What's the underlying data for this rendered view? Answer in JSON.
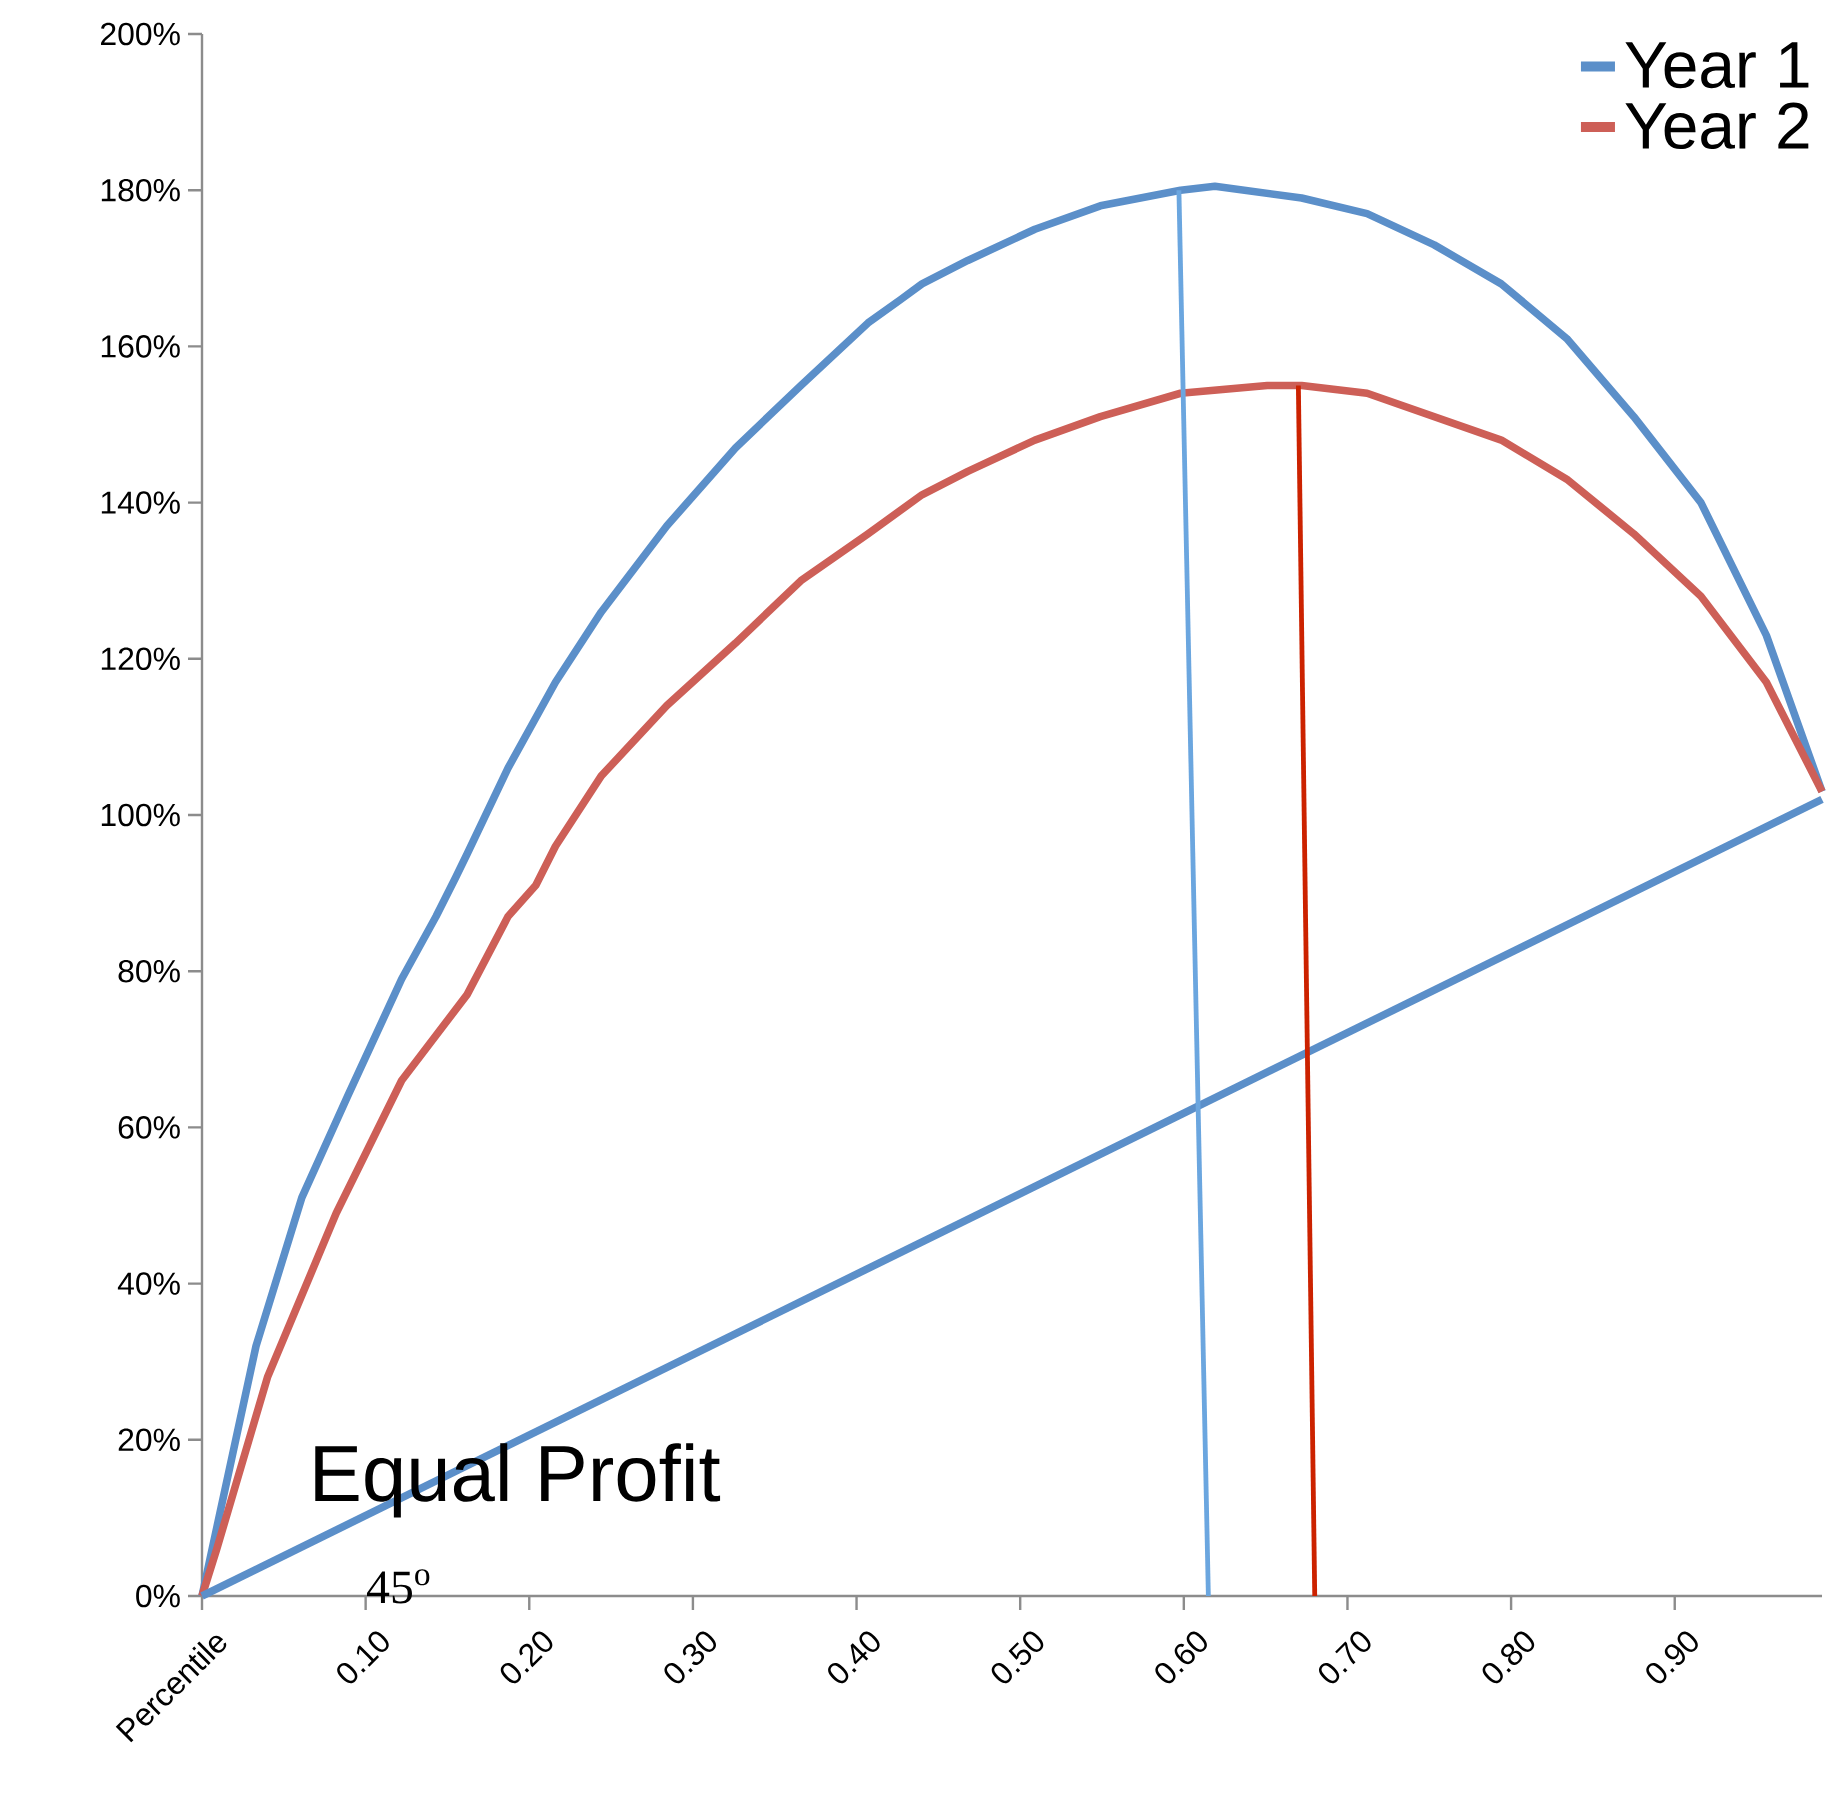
{
  "chart_data": {
    "type": "line",
    "annotations": [
      "Equal Profit",
      "45$^{o}$"
    ],
    "xlim": [
      0,
      0.99
    ],
    "xticks": [
      {
        "value": 0,
        "label": "Percentile"
      },
      {
        "value": 0.1,
        "label": "0.10"
      },
      {
        "value": 0.2,
        "label": "0.20"
      },
      {
        "value": 0.3,
        "label": "0.30"
      },
      {
        "value": 0.4,
        "label": "0.40"
      },
      {
        "value": 0.5,
        "label": "0.50"
      },
      {
        "value": 0.6,
        "label": "0.60"
      },
      {
        "value": 0.7,
        "label": "0.70"
      },
      {
        "value": 0.8,
        "label": "0.80"
      },
      {
        "value": 0.9,
        "label": "0.90"
      }
    ],
    "ylim": [
      0,
      200
    ],
    "yticks": [
      {
        "value": 0,
        "label": "0%"
      },
      {
        "value": 20,
        "label": "20%"
      },
      {
        "value": 40,
        "label": "40%"
      },
      {
        "value": 60,
        "label": "60%"
      },
      {
        "value": 80,
        "label": "80%"
      },
      {
        "value": 100,
        "label": "100%"
      },
      {
        "value": 120,
        "label": "120%"
      },
      {
        "value": 140,
        "label": "140%"
      },
      {
        "value": 160,
        "label": "160%"
      },
      {
        "value": 180,
        "label": "180%"
      },
      {
        "value": 200,
        "label": "200%"
      }
    ],
    "legend": "top right",
    "series": [
      {
        "name": "Year 1",
        "color": "#5b8fc9",
        "x": [
          0,
          0.033,
          0.061,
          0.089,
          0.122,
          0.143,
          0.155,
          0.162,
          0.187,
          0.216,
          0.244,
          0.284,
          0.326,
          0.366,
          0.407,
          0.427,
          0.44,
          0.468,
          0.509,
          0.549,
          0.598,
          0.619,
          0.672,
          0.712,
          0.753,
          0.794,
          0.834,
          0.875,
          0.916,
          0.956,
          0.99
        ],
        "values": [
          0,
          32,
          51,
          64,
          79,
          87,
          92,
          95,
          106,
          117,
          126,
          137,
          147,
          155,
          163,
          166,
          168,
          171,
          175,
          178,
          180,
          180.5,
          179,
          177,
          173,
          168,
          161,
          151,
          140,
          123,
          103
        ]
      },
      {
        "name": "Year 2",
        "color": "#cd5f57",
        "x": [
          0,
          0.009,
          0.04,
          0.082,
          0.122,
          0.162,
          0.187,
          0.204,
          0.216,
          0.244,
          0.284,
          0.326,
          0.366,
          0.407,
          0.44,
          0.468,
          0.509,
          0.549,
          0.598,
          0.651,
          0.672,
          0.712,
          0.753,
          0.794,
          0.834,
          0.875,
          0.916,
          0.956,
          0.99
        ],
        "values": [
          0,
          6,
          28,
          49,
          66,
          77,
          87,
          91,
          96,
          105,
          114,
          122,
          130,
          136,
          141,
          144,
          148,
          151,
          154,
          155,
          155,
          154,
          151,
          148,
          143,
          136,
          128,
          117,
          103
        ]
      },
      {
        "color": "#5b8fc9",
        "x": [
          0,
          0.99
        ],
        "values": [
          0,
          102
        ]
      },
      {
        "color": "#6ba6df",
        "x": [
          0.597,
          0.615
        ],
        "values": [
          180,
          0
        ]
      },
      {
        "color": "#cc2200",
        "x": [
          0.67,
          0.68
        ],
        "values": [
          155,
          0
        ]
      }
    ]
  }
}
